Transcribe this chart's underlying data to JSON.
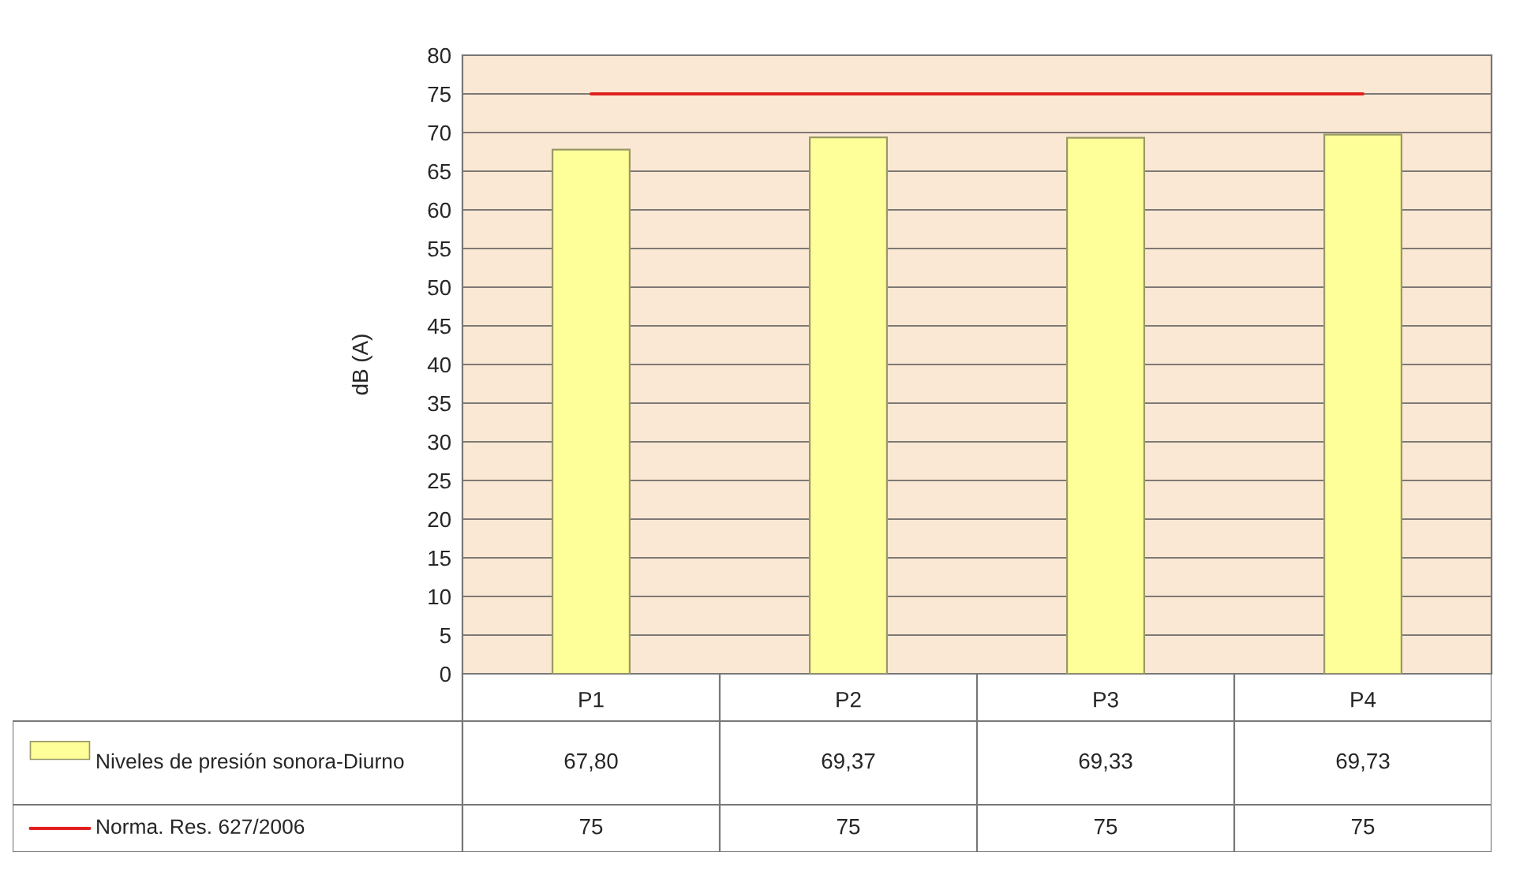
{
  "chart_data": {
    "type": "bar",
    "ylabel": "dB (A)",
    "categories": [
      "P1",
      "P2",
      "P3",
      "P4"
    ],
    "series": [
      {
        "name": "Niveles de presión sonora-Diurno",
        "color": "#ffff99",
        "values": [
          67.8,
          69.37,
          69.33,
          69.73
        ],
        "value_labels": [
          "67,80",
          "69,37",
          "69,33",
          "69,73"
        ]
      },
      {
        "name": "Norma. Res. 627/2006",
        "type": "line",
        "color": "#e02020",
        "values": [
          75,
          75,
          75,
          75
        ],
        "value_labels": [
          "75",
          "75",
          "75",
          "75"
        ]
      }
    ],
    "ylim": [
      0,
      80
    ],
    "yticks": [
      0,
      5,
      10,
      15,
      20,
      25,
      30,
      35,
      40,
      45,
      50,
      55,
      60,
      65,
      70,
      75,
      80
    ],
    "grid": "y",
    "legend": "bottom"
  }
}
